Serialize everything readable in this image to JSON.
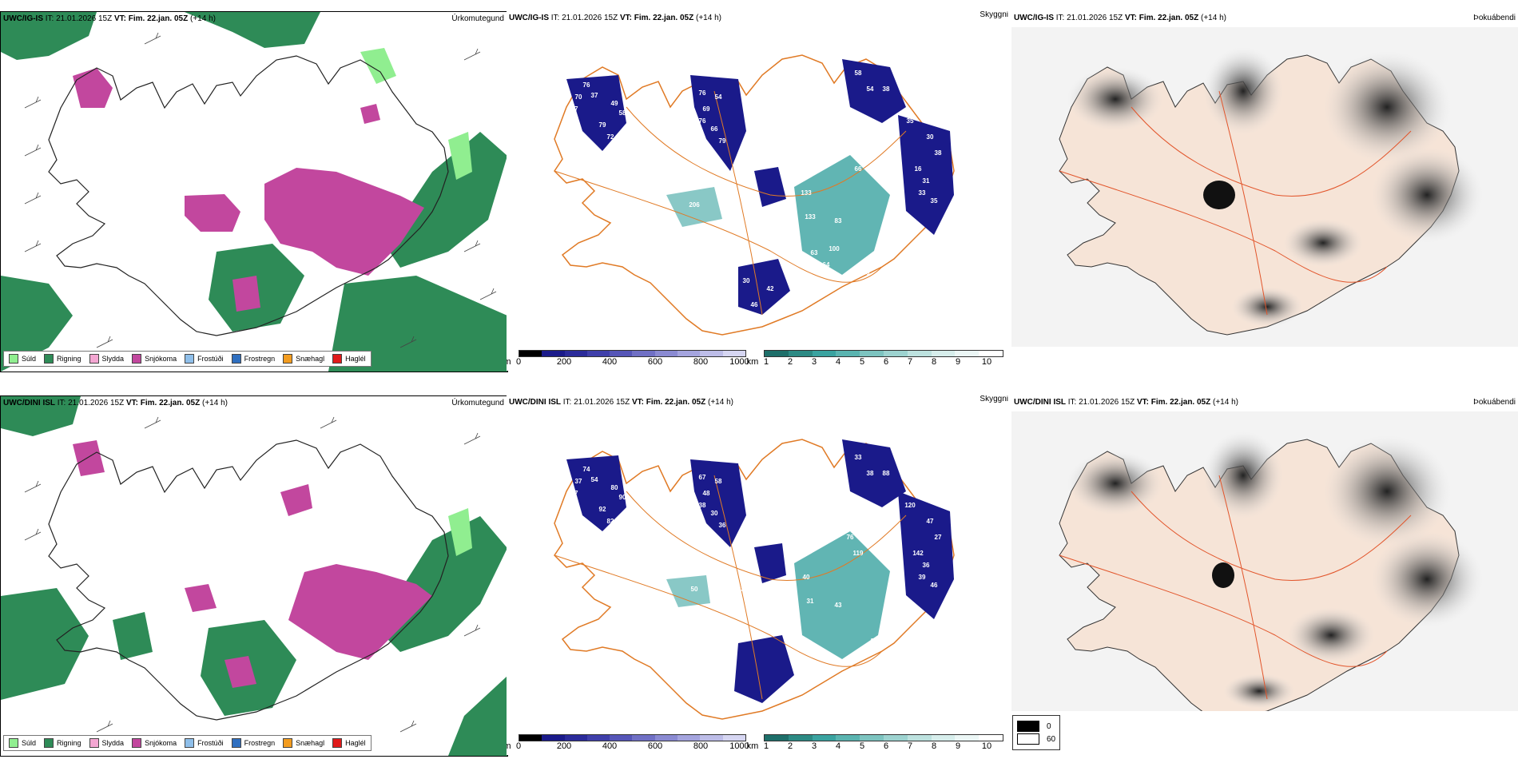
{
  "colors": {
    "precip_rain": "#2e8b57",
    "precip_drizzle": "#90ee90",
    "precip_sleet": "#f4a6d2",
    "precip_snow": "#c2479e",
    "precip_frost_drizzle": "#8fbfea",
    "precip_frost_rain": "#2f6fc0",
    "precip_snow_grains": "#f39c1f",
    "precip_hail": "#e01a1a",
    "vis_low": "#1a1a8a",
    "vis_mid": "#3aa3a0",
    "road": "#e07a25",
    "land": "#f6e4d7",
    "fog_dark": "#333333"
  },
  "legend_precip": [
    {
      "label": "Súld",
      "color": "#90ee90"
    },
    {
      "label": "Rigning",
      "color": "#2e8b57"
    },
    {
      "label": "Slydda",
      "color": "#f4a6d2"
    },
    {
      "label": "Snjókoma",
      "color": "#c2479e"
    },
    {
      "label": "Frostúði",
      "color": "#8fbfea"
    },
    {
      "label": "Frostregn",
      "color": "#2f6fc0"
    },
    {
      "label": "Snæhagl",
      "color": "#f39c1f"
    },
    {
      "label": "Haglél",
      "color": "#e01a1a"
    }
  ],
  "visibility_scale_m": {
    "unit": "m",
    "ticks": [
      "0",
      "200",
      "400",
      "600",
      "800",
      "1000"
    ]
  },
  "visibility_scale_km": {
    "unit": "km",
    "ticks": [
      "1",
      "2",
      "3",
      "4",
      "5",
      "6",
      "7",
      "8",
      "9",
      "10"
    ]
  },
  "fog_legend": [
    {
      "value": "0"
    },
    {
      "value": "60"
    }
  ],
  "rows": [
    {
      "model": "UWC/IG-IS",
      "run": "IT: 21.01.2026 15Z",
      "vt_label": "VT:",
      "vt": "Fim. 22.jan. 05Z",
      "lead": "(+14 h)",
      "panel_labels": {
        "precip": "Úrkomutegund",
        "vis": "Skyggni",
        "fog": "Þokuábendi"
      },
      "vis_values": [
        "76",
        "70",
        "37",
        "77",
        "49",
        "58",
        "79",
        "72",
        "69",
        "76",
        "54",
        "69",
        "76",
        "66",
        "79",
        "58",
        "54",
        "38",
        "35",
        "30",
        "38",
        "119",
        "103",
        "82",
        "248",
        "66",
        "189",
        "16",
        "31",
        "33",
        "133",
        "133",
        "35",
        "45",
        "206",
        "732",
        "83",
        "91",
        "31",
        "36",
        "34",
        "50",
        "30",
        "42",
        "46",
        "50",
        "36",
        "31",
        "26",
        "64",
        "100",
        "63"
      ]
    },
    {
      "model": "UWC/DINI ISL",
      "run": "IT: 21.01.2026 15Z",
      "vt_label": "VT:",
      "vt": "Fim. 22.jan. 05Z",
      "lead": "(+14 h)",
      "panel_labels": {
        "precip": "Úrkomutegund",
        "vis": "Skyggni",
        "fog": "Þokuábendi"
      },
      "vis_values": [
        "74",
        "37",
        "54",
        "47",
        "80",
        "90",
        "92",
        "82",
        "73",
        "67",
        "58",
        "48",
        "38",
        "30",
        "36",
        "33",
        "38",
        "88",
        "120",
        "47",
        "27",
        "72",
        "50",
        "76",
        "64",
        "119",
        "63",
        "142",
        "36",
        "39",
        "40",
        "31",
        "46",
        "344",
        "50",
        "39",
        "43",
        "78",
        "59",
        "92",
        "31"
      ]
    }
  ]
}
